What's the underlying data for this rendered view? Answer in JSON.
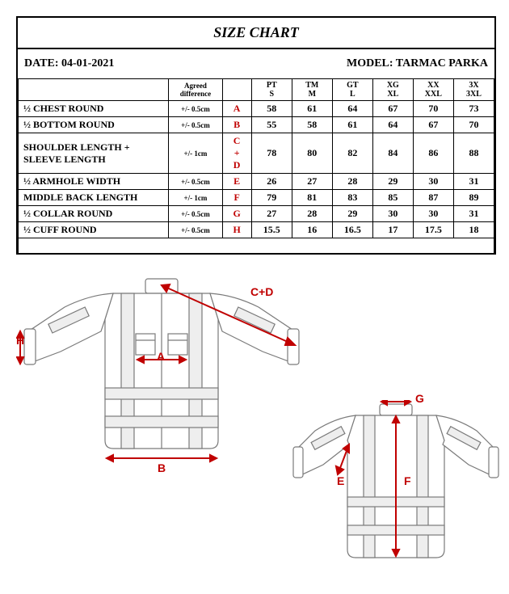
{
  "title": "SIZE CHART",
  "date_label": "DATE: 04-01-2021",
  "model_label": "MODEL: TARMAC PARKA",
  "columns": {
    "agreed": "Agreed difference",
    "sizes": [
      {
        "top": "PT",
        "bot": "S"
      },
      {
        "top": "TM",
        "bot": "M"
      },
      {
        "top": "GT",
        "bot": "L"
      },
      {
        "top": "XG",
        "bot": "XL"
      },
      {
        "top": "XX",
        "bot": "XXL"
      },
      {
        "top": "3X",
        "bot": "3XL"
      }
    ]
  },
  "rows": [
    {
      "name": "½ CHEST ROUND",
      "tol": "+/- 0.5cm",
      "letter": "A",
      "v": [
        "58",
        "61",
        "64",
        "67",
        "70",
        "73"
      ]
    },
    {
      "name": "½ BOTTOM ROUND",
      "tol": "+/- 0.5cm",
      "letter": "B",
      "v": [
        "55",
        "58",
        "61",
        "64",
        "67",
        "70"
      ]
    },
    {
      "name": "SHOULDER LENGTH + SLEEVE LENGTH",
      "tol": "+/- 1cm",
      "letter": "C\n+\nD",
      "v": [
        "78",
        "80",
        "82",
        "84",
        "86",
        "88"
      ]
    },
    {
      "name": "½ ARMHOLE WIDTH",
      "tol": "+/- 0.5cm",
      "letter": "E",
      "v": [
        "26",
        "27",
        "28",
        "29",
        "30",
        "31"
      ]
    },
    {
      "name": "MIDDLE BACK LENGTH",
      "tol": "+/- 1cm",
      "letter": "F",
      "v": [
        "79",
        "81",
        "83",
        "85",
        "87",
        "89"
      ]
    },
    {
      "name": "½ COLLAR ROUND",
      "tol": "+/- 0.5cm",
      "letter": "G",
      "v": [
        "27",
        "28",
        "29",
        "30",
        "30",
        "31"
      ]
    },
    {
      "name": "½ CUFF ROUND",
      "tol": "+/- 0.5cm",
      "letter": "H",
      "v": [
        "15.5",
        "16",
        "16.5",
        "17",
        "17.5",
        "18"
      ]
    }
  ],
  "diagram_labels": {
    "CD": "C+D",
    "H": "H",
    "A": "A",
    "B": "B",
    "G": "G",
    "E": "E",
    "F": "F"
  },
  "colors": {
    "red": "#c00000",
    "stroke": "#7a7a7a",
    "fill": "#ffffff"
  }
}
